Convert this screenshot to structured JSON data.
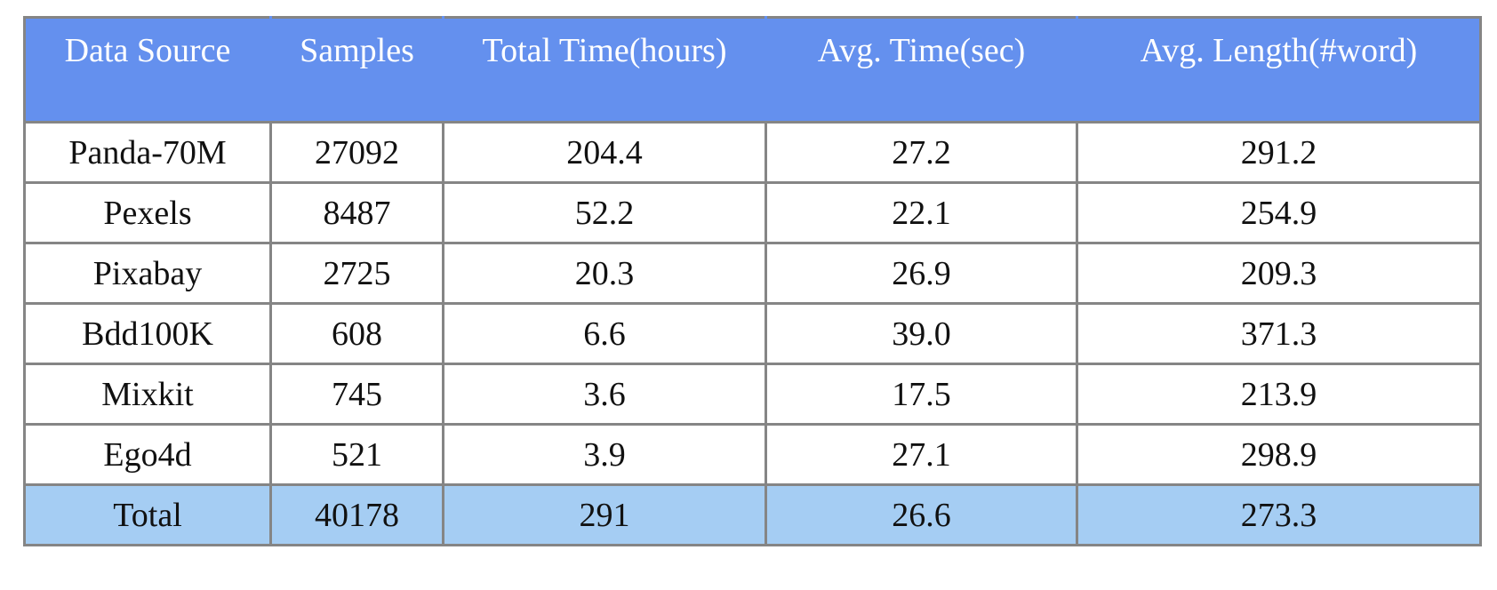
{
  "table": {
    "headers": [
      "Data Source",
      "Samples",
      "Total Time(hours)",
      "Avg. Time(sec)",
      "Avg. Length(#word)"
    ],
    "rows": [
      [
        "Panda-70M",
        "27092",
        "204.4",
        "27.2",
        "291.2"
      ],
      [
        "Pexels",
        "8487",
        "52.2",
        "22.1",
        "254.9"
      ],
      [
        "Pixabay",
        "2725",
        "20.3",
        "26.9",
        "209.3"
      ],
      [
        "Bdd100K",
        "608",
        "6.6",
        "39.0",
        "371.3"
      ],
      [
        "Mixkit",
        "745",
        "3.6",
        "17.5",
        "213.9"
      ],
      [
        "Ego4d",
        "521",
        "3.9",
        "27.1",
        "298.9"
      ]
    ],
    "total": [
      "Total",
      "40178",
      "291",
      "26.6",
      "273.3"
    ],
    "colors": {
      "header_bg": "#6490ee",
      "header_text": "#ffffff",
      "total_bg": "#a5cdf3",
      "border": "#858585"
    }
  }
}
